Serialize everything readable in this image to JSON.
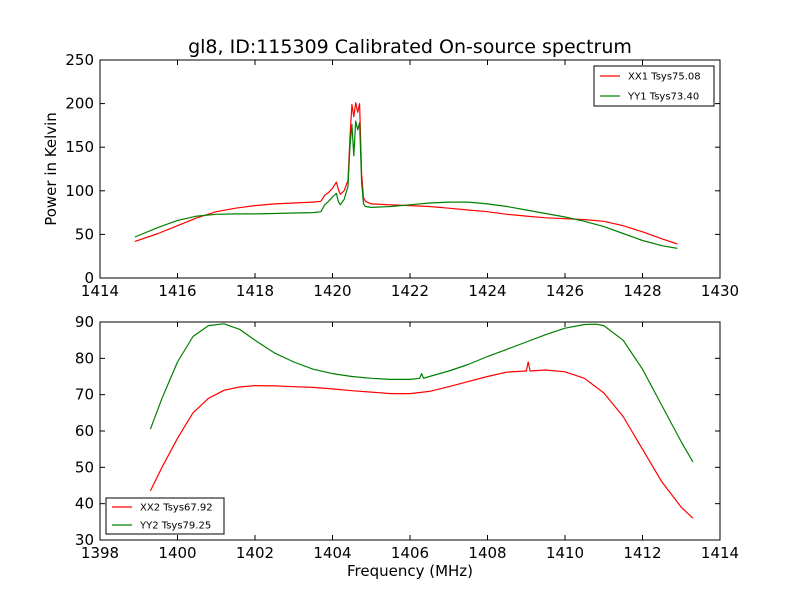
{
  "figure": {
    "title": "gl8, ID:115309 Calibrated On-source spectrum",
    "ylabel": "Power in Kelvin",
    "xlabel": "Frequency (MHz)"
  },
  "chart_data": [
    {
      "type": "line",
      "panel": "top",
      "xlim": [
        1414,
        1430
      ],
      "ylim": [
        0,
        250
      ],
      "xticks": [
        1414,
        1416,
        1418,
        1420,
        1422,
        1424,
        1426,
        1428,
        1430
      ],
      "yticks": [
        0,
        50,
        100,
        150,
        200,
        250
      ],
      "legend_position": "top-right",
      "series": [
        {
          "name": "XX1 Tsys75.08",
          "color": "#ff0000",
          "x": [
            1414.9,
            1415.5,
            1416.0,
            1416.5,
            1417.0,
            1417.5,
            1418.0,
            1418.5,
            1419.0,
            1419.5,
            1419.7,
            1419.8,
            1419.9,
            1420.0,
            1420.1,
            1420.15,
            1420.2,
            1420.3,
            1420.4,
            1420.45,
            1420.5,
            1420.55,
            1420.6,
            1420.65,
            1420.7,
            1420.75,
            1420.8,
            1420.85,
            1421.0,
            1421.5,
            1422.0,
            1422.5,
            1423.0,
            1423.5,
            1424.0,
            1424.5,
            1425.0,
            1425.5,
            1426.0,
            1426.5,
            1427.0,
            1427.5,
            1428.0,
            1428.5,
            1428.9
          ],
          "y": [
            42,
            51,
            60,
            69,
            76,
            80,
            83,
            85,
            86,
            87,
            88,
            95,
            98,
            103,
            110,
            102,
            96,
            100,
            112,
            160,
            199,
            185,
            201,
            190,
            200,
            120,
            92,
            88,
            85,
            84,
            83,
            82,
            80,
            78,
            76,
            73,
            71,
            69,
            68,
            67,
            65,
            60,
            53,
            45,
            39
          ]
        },
        {
          "name": "YY1 Tsys73.40",
          "color": "#008000",
          "x": [
            1414.9,
            1415.5,
            1416.0,
            1416.5,
            1417.0,
            1417.5,
            1418.0,
            1418.5,
            1419.0,
            1419.5,
            1419.7,
            1419.8,
            1419.9,
            1420.0,
            1420.1,
            1420.15,
            1420.2,
            1420.3,
            1420.4,
            1420.45,
            1420.5,
            1420.55,
            1420.6,
            1420.65,
            1420.7,
            1420.75,
            1420.8,
            1420.85,
            1421.0,
            1421.5,
            1422.0,
            1422.5,
            1423.0,
            1423.5,
            1424.0,
            1424.5,
            1425.0,
            1425.5,
            1426.0,
            1426.5,
            1427.0,
            1427.5,
            1428.0,
            1428.5,
            1428.9
          ],
          "y": [
            47,
            58,
            66,
            71,
            73,
            73.5,
            73.5,
            74,
            74.5,
            75,
            76,
            84,
            88,
            93,
            97,
            88,
            84,
            90,
            105,
            150,
            176,
            140,
            180,
            170,
            178,
            110,
            85,
            82,
            81,
            82,
            84,
            86,
            87,
            87,
            85,
            82,
            78,
            74,
            70,
            65,
            59,
            51,
            43,
            37,
            34
          ]
        }
      ]
    },
    {
      "type": "line",
      "panel": "bottom",
      "xlim": [
        1398,
        1414
      ],
      "ylim": [
        30,
        90
      ],
      "xticks": [
        1398,
        1400,
        1402,
        1404,
        1406,
        1408,
        1410,
        1412,
        1414
      ],
      "yticks": [
        30,
        40,
        50,
        60,
        70,
        80,
        90
      ],
      "legend_position": "bottom-left",
      "series": [
        {
          "name": "XX2 Tsys67.92",
          "color": "#ff0000",
          "x": [
            1399.3,
            1399.6,
            1400.0,
            1400.4,
            1400.8,
            1401.2,
            1401.6,
            1402.0,
            1402.5,
            1403.0,
            1403.5,
            1404.0,
            1404.5,
            1405.0,
            1405.5,
            1406.0,
            1406.5,
            1407.0,
            1407.5,
            1408.0,
            1408.5,
            1409.0,
            1409.05,
            1409.1,
            1409.5,
            1410.0,
            1410.5,
            1411.0,
            1411.5,
            1412.0,
            1412.5,
            1413.0,
            1413.3
          ],
          "y": [
            43.5,
            50,
            58,
            65,
            69,
            71.2,
            72.1,
            72.5,
            72.4,
            72.2,
            72,
            71.6,
            71.1,
            70.7,
            70.3,
            70.3,
            70.9,
            72.2,
            73.6,
            75,
            76.2,
            76.5,
            79,
            76.5,
            76.8,
            76.3,
            74.5,
            70.5,
            64,
            55,
            46,
            39,
            36
          ]
        },
        {
          "name": "YY2 Tsys79.25",
          "color": "#008000",
          "x": [
            1399.3,
            1399.6,
            1400.0,
            1400.4,
            1400.8,
            1401.2,
            1401.6,
            1402.0,
            1402.5,
            1403.0,
            1403.5,
            1404.0,
            1404.5,
            1405.0,
            1405.5,
            1406.0,
            1406.25,
            1406.3,
            1406.35,
            1406.5,
            1407.0,
            1407.5,
            1408.0,
            1408.5,
            1409.0,
            1409.5,
            1410.0,
            1410.5,
            1410.8,
            1411.0,
            1411.5,
            1412.0,
            1412.5,
            1413.0,
            1413.3
          ],
          "y": [
            60.5,
            69,
            79,
            86,
            89,
            89.5,
            88,
            85,
            81.5,
            79,
            77,
            75.8,
            75,
            74.5,
            74.2,
            74.2,
            74.5,
            75.8,
            74.5,
            75,
            76.5,
            78.3,
            80.5,
            82.5,
            84.5,
            86.5,
            88.3,
            89.3,
            89.4,
            89,
            85,
            77,
            67,
            57,
            51.5
          ]
        }
      ]
    }
  ]
}
